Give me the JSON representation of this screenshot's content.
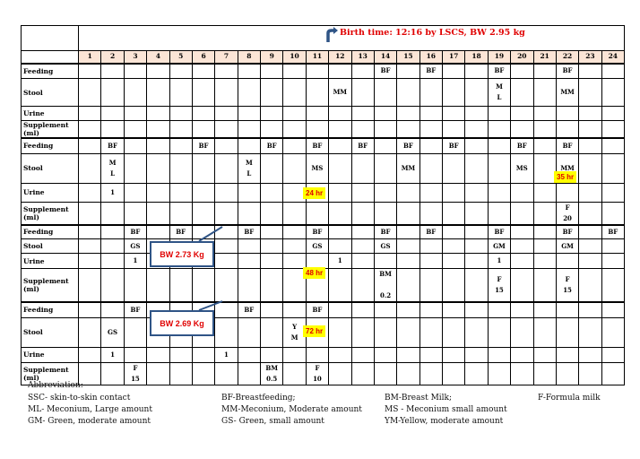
{
  "header": {
    "birth_note": "Birth time: 12:16 by LSCS, BW 2.95 kg"
  },
  "hours": [
    "1",
    "2",
    "3",
    "4",
    "5",
    "6",
    "7",
    "8",
    "9",
    "10",
    "11",
    "12",
    "13",
    "14",
    "15",
    "16",
    "17",
    "18",
    "19",
    "20",
    "21",
    "22",
    "23",
    "24"
  ],
  "row_labels": {
    "feeding": "Feeding",
    "stool": "Stool",
    "urine": "Urine",
    "supplement": "Supplement\n(ml)"
  },
  "blocks": [
    {
      "feeding": [
        "",
        "",
        "",
        "",
        "",
        "",
        "",
        "",
        "",
        "",
        "",
        "",
        "",
        "BF",
        "",
        "BF",
        "",
        "",
        "BF",
        "",
        "",
        "BF",
        "",
        ""
      ],
      "stool": [
        "",
        "",
        "",
        "",
        "",
        "",
        "",
        "",
        "",
        "",
        "",
        "MM",
        "",
        "",
        "",
        "",
        "",
        "",
        "M\nL",
        "",
        "",
        "MM",
        "",
        ""
      ],
      "urine": [
        "",
        "",
        "",
        "",
        "",
        "",
        "",
        "",
        "",
        "",
        "",
        "",
        "",
        "",
        "",
        "",
        "",
        "",
        "",
        "",
        "",
        "",
        "",
        ""
      ],
      "supplement": [
        "",
        "",
        "",
        "",
        "",
        "",
        "",
        "",
        "",
        "",
        "",
        "",
        "",
        "",
        "",
        "",
        "",
        "",
        "",
        "",
        "",
        "",
        "",
        ""
      ]
    },
    {
      "feeding": [
        "",
        "BF",
        "",
        "",
        "",
        "BF",
        "",
        "",
        "BF",
        "",
        "BF",
        "",
        "BF",
        "",
        "BF",
        "",
        "BF",
        "",
        "",
        "BF",
        "",
        "BF",
        "",
        ""
      ],
      "stool": [
        "",
        "M\nL",
        "",
        "",
        "",
        "",
        "",
        "M\nL",
        "",
        "",
        "MS",
        "",
        "",
        "",
        "MM",
        "",
        "",
        "",
        "",
        "MS",
        "",
        "MM",
        "",
        ""
      ],
      "urine": [
        "",
        "1",
        "",
        "",
        "",
        "",
        "",
        "",
        "",
        "",
        "",
        "",
        "",
        "",
        "",
        "",
        "",
        "",
        "",
        "",
        "",
        "",
        "",
        ""
      ],
      "supplement": [
        "",
        "",
        "",
        "",
        "",
        "",
        "",
        "",
        "",
        "",
        "",
        "",
        "",
        "",
        "",
        "",
        "",
        "",
        "",
        "",
        "",
        "F\n20",
        "",
        ""
      ]
    },
    {
      "feeding": [
        "",
        "",
        "BF",
        "",
        "BF",
        "",
        "",
        "BF",
        "",
        "",
        "BF",
        "",
        "",
        "BF",
        "",
        "BF",
        "",
        "",
        "BF",
        "",
        "",
        "BF",
        "",
        "BF"
      ],
      "stool": [
        "",
        "",
        "GS",
        "",
        "",
        "",
        "",
        "",
        "",
        "",
        "GS",
        "",
        "",
        "GS",
        "",
        "",
        "",
        "",
        "GM",
        "",
        "",
        "GM",
        "",
        ""
      ],
      "urine": [
        "",
        "",
        "1",
        "",
        "",
        "",
        "",
        "",
        "",
        "",
        "",
        "1",
        "",
        "",
        "",
        "",
        "",
        "",
        "1",
        "",
        "",
        "",
        "",
        ""
      ],
      "supplement": [
        "",
        "",
        "",
        "",
        "",
        "",
        "",
        "",
        "",
        "",
        "",
        "",
        "",
        "BM\n\n0.2",
        "",
        "",
        "",
        "",
        "F\n15",
        "",
        "",
        "F\n15",
        "",
        ""
      ]
    },
    {
      "feeding": [
        "",
        "",
        "BF",
        "",
        "",
        "",
        "",
        "BF",
        "",
        "",
        "BF",
        "",
        "",
        "",
        "",
        "",
        "",
        "",
        "",
        "",
        "",
        "",
        "",
        ""
      ],
      "stool": [
        "",
        "GS",
        "",
        "",
        "",
        "",
        "",
        "",
        "",
        "Y\nM",
        "",
        "",
        "",
        "",
        "",
        "",
        "",
        "",
        "",
        "",
        "",
        "",
        "",
        ""
      ],
      "urine": [
        "",
        "1",
        "",
        "",
        "",
        "",
        "1",
        "",
        "",
        "",
        "",
        "",
        "",
        "",
        "",
        "",
        "",
        "",
        "",
        "",
        "",
        "",
        "",
        ""
      ],
      "supplement": [
        "",
        "",
        "F\n15",
        "",
        "",
        "",
        "",
        "",
        "BM\n0.5",
        "",
        "F\n10",
        "",
        "",
        "",
        "",
        "",
        "",
        "",
        "",
        "",
        "",
        "",
        "",
        ""
      ]
    }
  ],
  "highlights": {
    "h24": "24 hr",
    "h35": "35 hr",
    "h48": "48 hr",
    "h72": "72 hr"
  },
  "weights": {
    "w1": "BW 2.73 Kg",
    "w2": "BW 2.69 Kg"
  },
  "abbreviations": {
    "title": "Abbreviation:",
    "items": [
      "SSC- skin-to-skin contact",
      "BF-Breastfeeding;",
      "BM-Breast Milk;",
      "F-Formula milk",
      "ML- Meconium, Large amount",
      "MM-Meconium, Moderate amount",
      "MS - Meconium small amount",
      "GM- Green, moderate amount",
      "GS- Green, small amount",
      "YM-Yellow, moderate amount"
    ]
  }
}
